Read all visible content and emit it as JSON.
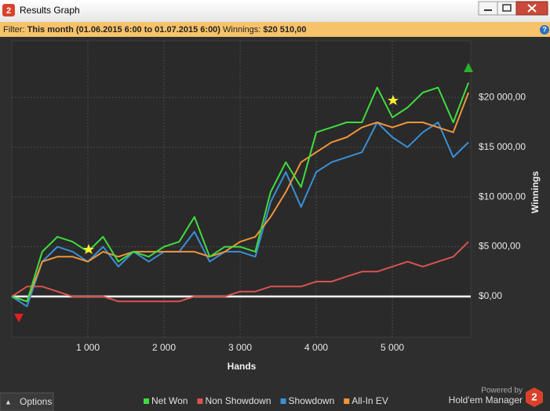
{
  "window": {
    "title": "Results Graph",
    "logo": "2"
  },
  "filter": {
    "label": "Filter:",
    "period": "This month (01.06.2015 6:00 to 01.07.2015 6:00)",
    "winnings_label": "Winnings:",
    "winnings": "$20 510,00"
  },
  "footer": {
    "options": "Options",
    "powered_by": "Powered by",
    "brand": "Hold'em Manager",
    "brand_logo": "2"
  },
  "chart_data": {
    "type": "line",
    "xlabel": "Hands",
    "ylabel": "Winnings",
    "x": [
      0,
      200,
      400,
      600,
      800,
      1000,
      1200,
      1400,
      1600,
      1800,
      2000,
      2200,
      2400,
      2600,
      2800,
      3000,
      3200,
      3400,
      3600,
      3800,
      4000,
      4200,
      4400,
      4600,
      4800,
      5000,
      5200,
      5400,
      5600,
      5800,
      6000
    ],
    "series": [
      {
        "name": "Net Won",
        "color": "#3fdc3f",
        "values": [
          0,
          -500,
          4500,
          6000,
          5500,
          4500,
          6000,
          3500,
          4500,
          4000,
          5000,
          5500,
          8000,
          4000,
          5000,
          5000,
          4500,
          10500,
          13500,
          11000,
          16500,
          17000,
          17500,
          17500,
          21000,
          18000,
          19000,
          20500,
          21000,
          17500,
          21500
        ]
      },
      {
        "name": "Non Showdown",
        "color": "#d9534f",
        "values": [
          0,
          1000,
          1000,
          500,
          0,
          0,
          0,
          -500,
          -500,
          -500,
          -500,
          -500,
          0,
          0,
          0,
          500,
          500,
          1000,
          1000,
          1000,
          1500,
          1500,
          2000,
          2500,
          2500,
          3000,
          3500,
          3000,
          3500,
          4000,
          5500
        ]
      },
      {
        "name": "Showdown",
        "color": "#3a8fd8",
        "values": [
          0,
          -1000,
          3500,
          5000,
          4500,
          3500,
          5000,
          3000,
          4500,
          3500,
          4500,
          4500,
          6500,
          3500,
          4500,
          4500,
          4000,
          9500,
          12500,
          9000,
          12500,
          13500,
          14000,
          14500,
          17500,
          16000,
          15000,
          16500,
          17500,
          14000,
          15500
        ]
      },
      {
        "name": "All-In EV",
        "color": "#f0943a",
        "values": [
          0,
          -500,
          3500,
          4000,
          4000,
          3500,
          4500,
          4000,
          4500,
          4500,
          4500,
          4500,
          4500,
          4000,
          4500,
          5500,
          6000,
          8000,
          10500,
          13500,
          14500,
          15500,
          16000,
          17000,
          17500,
          17000,
          17500,
          17500,
          17000,
          16500,
          20500
        ]
      }
    ],
    "xlim": [
      0,
      6030
    ],
    "ylim": [
      -4100,
      25700
    ],
    "xticks": [
      {
        "value": 1000,
        "label": "1 000"
      },
      {
        "value": 2000,
        "label": "2 000"
      },
      {
        "value": 3000,
        "label": "3 000"
      },
      {
        "value": 4000,
        "label": "4 000"
      },
      {
        "value": 5000,
        "label": "5 000"
      }
    ],
    "yticks": [
      {
        "value": 0,
        "label": "$0,00"
      },
      {
        "value": 5000,
        "label": "$5 000,00"
      },
      {
        "value": 10000,
        "label": "$10 000,00"
      },
      {
        "value": 15000,
        "label": "$15 000,00"
      },
      {
        "value": 20000,
        "label": "$20 000,00"
      }
    ],
    "grid": true
  }
}
